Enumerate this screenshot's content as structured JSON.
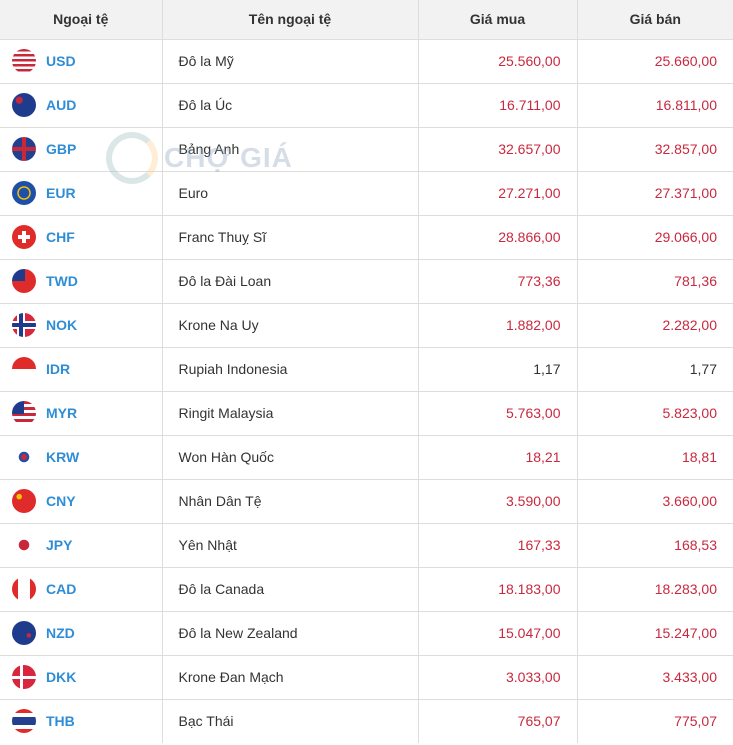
{
  "headers": [
    "Ngoại tệ",
    "Tên ngoại tệ",
    "Giá mua",
    "Giá bán"
  ],
  "watermark": "CHỢ GIÁ",
  "colors": {
    "code": "#2f8dd6",
    "price": "#c9283e",
    "header_bg": "#f2f2f2"
  },
  "rows": [
    {
      "code": "USD",
      "name": "Đô la Mỹ",
      "buy": "25.560,00",
      "sell": "25.660,00",
      "flag": "us-flag-icon"
    },
    {
      "code": "AUD",
      "name": "Đô la Úc",
      "buy": "16.711,00",
      "sell": "16.811,00",
      "flag": "au-flag-icon"
    },
    {
      "code": "GBP",
      "name": "Bảng Anh",
      "buy": "32.657,00",
      "sell": "32.857,00",
      "flag": "gb-flag-icon"
    },
    {
      "code": "EUR",
      "name": "Euro",
      "buy": "27.271,00",
      "sell": "27.371,00",
      "flag": "eu-flag-icon"
    },
    {
      "code": "CHF",
      "name": "Franc Thuỵ Sĩ",
      "buy": "28.866,00",
      "sell": "29.066,00",
      "flag": "ch-flag-icon"
    },
    {
      "code": "TWD",
      "name": "Đô la Đài Loan",
      "buy": "773,36",
      "sell": "781,36",
      "flag": "tw-flag-icon"
    },
    {
      "code": "NOK",
      "name": "Krone Na Uy",
      "buy": "1.882,00",
      "sell": "2.282,00",
      "flag": "no-flag-icon"
    },
    {
      "code": "IDR",
      "name": "Rupiah Indonesia",
      "buy": "1,17",
      "sell": "1,77",
      "flag": "id-flag-icon",
      "plain": true
    },
    {
      "code": "MYR",
      "name": "Ringit Malaysia",
      "buy": "5.763,00",
      "sell": "5.823,00",
      "flag": "my-flag-icon"
    },
    {
      "code": "KRW",
      "name": "Won Hàn Quốc",
      "buy": "18,21",
      "sell": "18,81",
      "flag": "kr-flag-icon"
    },
    {
      "code": "CNY",
      "name": "Nhân Dân Tệ",
      "buy": "3.590,00",
      "sell": "3.660,00",
      "flag": "cn-flag-icon"
    },
    {
      "code": "JPY",
      "name": "Yên Nhật",
      "buy": "167,33",
      "sell": "168,53",
      "flag": "jp-flag-icon"
    },
    {
      "code": "CAD",
      "name": "Đô la Canada",
      "buy": "18.183,00",
      "sell": "18.283,00",
      "flag": "ca-flag-icon"
    },
    {
      "code": "NZD",
      "name": "Đô la New Zealand",
      "buy": "15.047,00",
      "sell": "15.247,00",
      "flag": "nz-flag-icon"
    },
    {
      "code": "DKK",
      "name": "Krone Đan Mạch",
      "buy": "3.033,00",
      "sell": "3.433,00",
      "flag": "dk-flag-icon"
    },
    {
      "code": "THB",
      "name": "Bạc Thái",
      "buy": "765,07",
      "sell": "775,07",
      "flag": "th-flag-icon"
    }
  ]
}
